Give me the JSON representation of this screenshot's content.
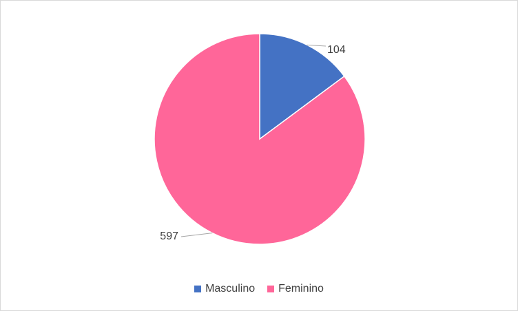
{
  "chart_data": {
    "type": "pie",
    "categories": [
      "Masculino",
      "Feminino"
    ],
    "values": [
      104,
      597
    ],
    "colors": [
      "#4472c4",
      "#ff6699"
    ],
    "data_labels": [
      "104",
      "597"
    ],
    "legend_position": "bottom",
    "start_angle": "top (12 o'clock), clockwise"
  }
}
